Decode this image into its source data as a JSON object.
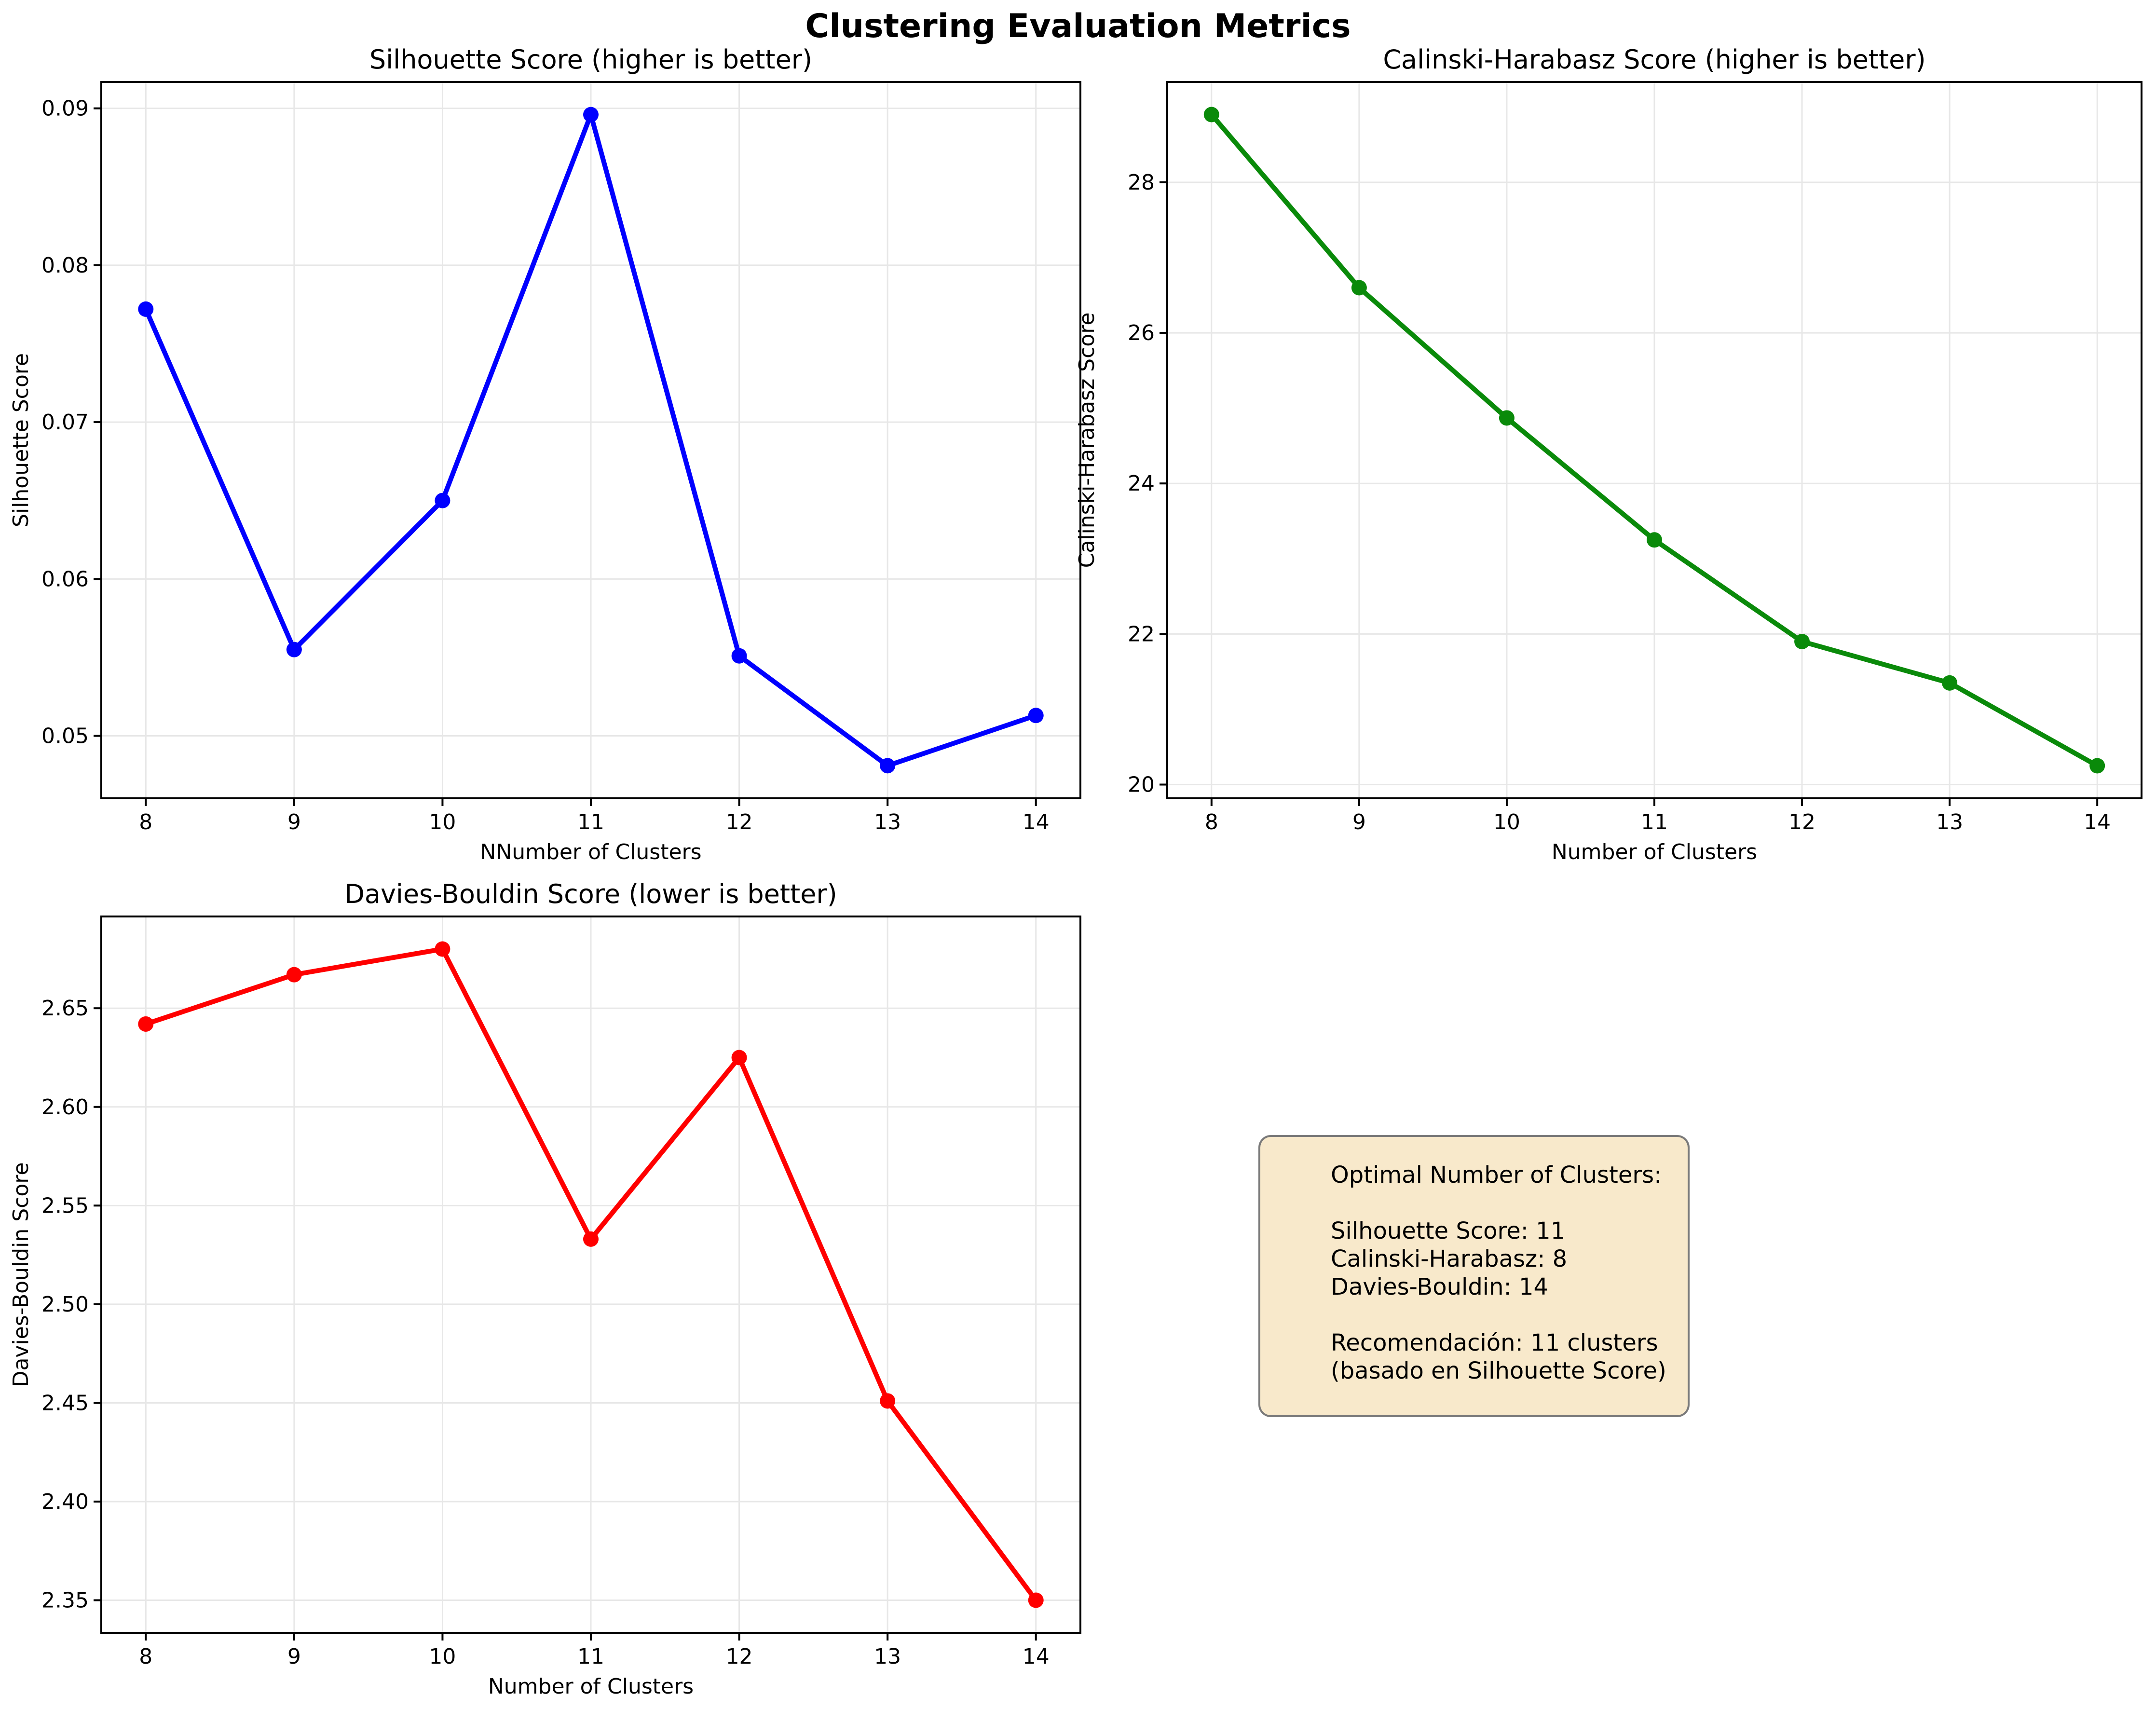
{
  "figure": {
    "title": "Clustering Evaluation Metrics",
    "background_color": "#ffffff"
  },
  "chart_data": [
    {
      "id": "silhouette",
      "type": "line",
      "title": "Silhouette Score (higher is better)",
      "xlabel": "NNumber of Clusters",
      "ylabel": "Silhouette Score",
      "color": "#0000ff",
      "grid": true,
      "x": [
        8,
        9,
        10,
        11,
        12,
        13,
        14
      ],
      "values": [
        0.0772,
        0.0555,
        0.065,
        0.0896,
        0.0551,
        0.0481,
        0.0513
      ],
      "x_ticks": [
        8,
        9,
        10,
        11,
        12,
        13,
        14
      ],
      "x_tick_labels": [
        "8",
        "9",
        "10",
        "11",
        "12",
        "13",
        "14"
      ],
      "y_ticks": [
        0.05,
        0.06,
        0.07,
        0.08,
        0.09
      ],
      "y_tick_labels": [
        "0.05",
        "0.06",
        "0.07",
        "0.08",
        "0.09"
      ],
      "xlim": [
        7.7,
        14.3
      ],
      "ylim": [
        0.04602,
        0.09168
      ]
    },
    {
      "id": "calinski",
      "type": "line",
      "title": "Calinski-Harabasz Score (higher is better)",
      "xlabel": "Number of Clusters",
      "ylabel": "Calinski-Harabasz Score",
      "color": "#0a8a0a",
      "grid": true,
      "x": [
        8,
        9,
        10,
        11,
        12,
        13,
        14
      ],
      "values": [
        28.9,
        26.6,
        24.87,
        23.25,
        21.9,
        21.35,
        20.25
      ],
      "x_ticks": [
        8,
        9,
        10,
        11,
        12,
        13,
        14
      ],
      "x_tick_labels": [
        "8",
        "9",
        "10",
        "11",
        "12",
        "13",
        "14"
      ],
      "y_ticks": [
        20,
        22,
        24,
        26,
        28
      ],
      "y_tick_labels": [
        "20",
        "22",
        "24",
        "26",
        "28"
      ],
      "xlim": [
        7.7,
        14.3
      ],
      "ylim": [
        19.8175,
        29.3325
      ]
    },
    {
      "id": "davies",
      "type": "line",
      "title": "Davies-Bouldin Score (lower is better)",
      "xlabel": "Number of Clusters",
      "ylabel": "Davies-Bouldin Score",
      "color": "#ff0000",
      "grid": true,
      "x": [
        8,
        9,
        10,
        11,
        12,
        13,
        14
      ],
      "values": [
        2.642,
        2.667,
        2.68,
        2.533,
        2.625,
        2.451,
        2.35
      ],
      "x_ticks": [
        8,
        9,
        10,
        11,
        12,
        13,
        14
      ],
      "x_tick_labels": [
        "8",
        "9",
        "10",
        "11",
        "12",
        "13",
        "14"
      ],
      "y_ticks": [
        2.35,
        2.4,
        2.45,
        2.5,
        2.55,
        2.6,
        2.65
      ],
      "y_tick_labels": [
        "2.35",
        "2.40",
        "2.45",
        "2.50",
        "2.55",
        "2.60",
        "2.65"
      ],
      "xlim": [
        7.7,
        14.3
      ],
      "ylim": [
        2.3335,
        2.6965
      ]
    }
  ],
  "info_box": {
    "background_color": "#f8e9cb",
    "border_color": "#7a7a7a",
    "lines": [
      "Optimal Number of Clusters:",
      "",
      "Silhouette Score: 11",
      "Calinski-Harabasz: 8",
      "Davies-Bouldin: 14",
      "",
      "Recomendación: 11 clusters",
      "(basado en Silhouette Score)"
    ]
  }
}
